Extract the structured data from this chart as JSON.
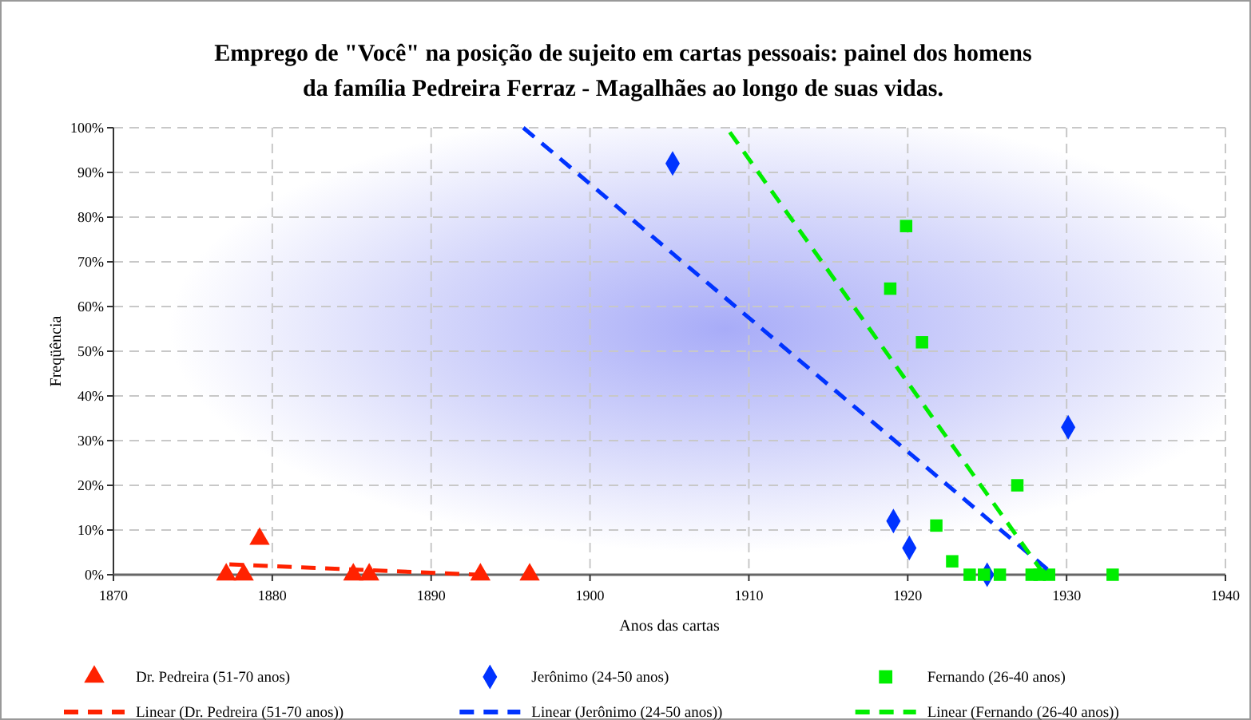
{
  "chart_data": {
    "type": "scatter",
    "title": "Emprego de \"Você\" na posição de sujeito em cartas pessoais: painel dos homens da família Pedreira Ferraz - Magalhães ao longo de suas vidas.",
    "xlabel": "Anos das cartas",
    "ylabel": "Freqüência",
    "xlim": [
      1870,
      1940
    ],
    "xticks": [
      1870,
      1880,
      1890,
      1900,
      1910,
      1920,
      1930,
      1940
    ],
    "ylim": [
      0,
      100
    ],
    "yticks": [
      {
        "value": 0,
        "label": "0%"
      },
      {
        "value": 10,
        "label": "10%"
      },
      {
        "value": 20,
        "label": "20%"
      },
      {
        "value": 30,
        "label": "30%"
      },
      {
        "value": 40,
        "label": "40%"
      },
      {
        "value": 50,
        "label": "50%"
      },
      {
        "value": 60,
        "label": "60%"
      },
      {
        "value": 70,
        "label": "70%"
      },
      {
        "value": 80,
        "label": "80%"
      },
      {
        "value": 90,
        "label": "90%"
      },
      {
        "value": 100,
        "label": "100%"
      }
    ],
    "grid": true,
    "legend": "bottom",
    "series": [
      {
        "name": "Dr. Pedreira (51-70 anos)",
        "color": "#ff2200",
        "marker": "triangle",
        "x": [
          1877.1,
          1878.2,
          1879.2,
          1885.1,
          1886.1,
          1893.1,
          1896.2
        ],
        "values": [
          0,
          0,
          8,
          0,
          0,
          0,
          0
        ]
      },
      {
        "name": "Jerônimo (24-50 anos)",
        "color": "#0033ff",
        "marker": "diamond",
        "x": [
          1905.2,
          1919.1,
          1920.1,
          1925.0,
          1930.1
        ],
        "values": [
          92,
          12,
          6,
          0,
          33
        ]
      },
      {
        "name": "Fernando (26-40 anos)",
        "color": "#00ee00",
        "marker": "square",
        "x": [
          1918.9,
          1919.9,
          1920.9,
          1921.8,
          1922.8,
          1923.9,
          1924.8,
          1925.8,
          1926.9,
          1927.8,
          1928.3,
          1928.9,
          1932.9
        ],
        "values": [
          64,
          78,
          52,
          11,
          3,
          0,
          0,
          0,
          20,
          0,
          0,
          0,
          0
        ]
      },
      {
        "name": "Linear (Dr. Pedreira (51-70 anos))",
        "type": "line",
        "line_style": "dashed",
        "color": "#ff2200",
        "x": [
          1877.3,
          1893
        ],
        "values": [
          2.3,
          0
        ]
      },
      {
        "name": "Linear (Jerônimo (24-50 anos))",
        "type": "line",
        "line_style": "dashed",
        "color": "#0033ff",
        "x": [
          1895.8,
          1929.2
        ],
        "values": [
          100,
          0
        ]
      },
      {
        "name": "Linear (Fernando (26-40 anos))",
        "type": "line",
        "line_style": "dashed",
        "color": "#00ee00",
        "x": [
          1908.8,
          1928.6
        ],
        "values": [
          99,
          0
        ]
      }
    ]
  }
}
